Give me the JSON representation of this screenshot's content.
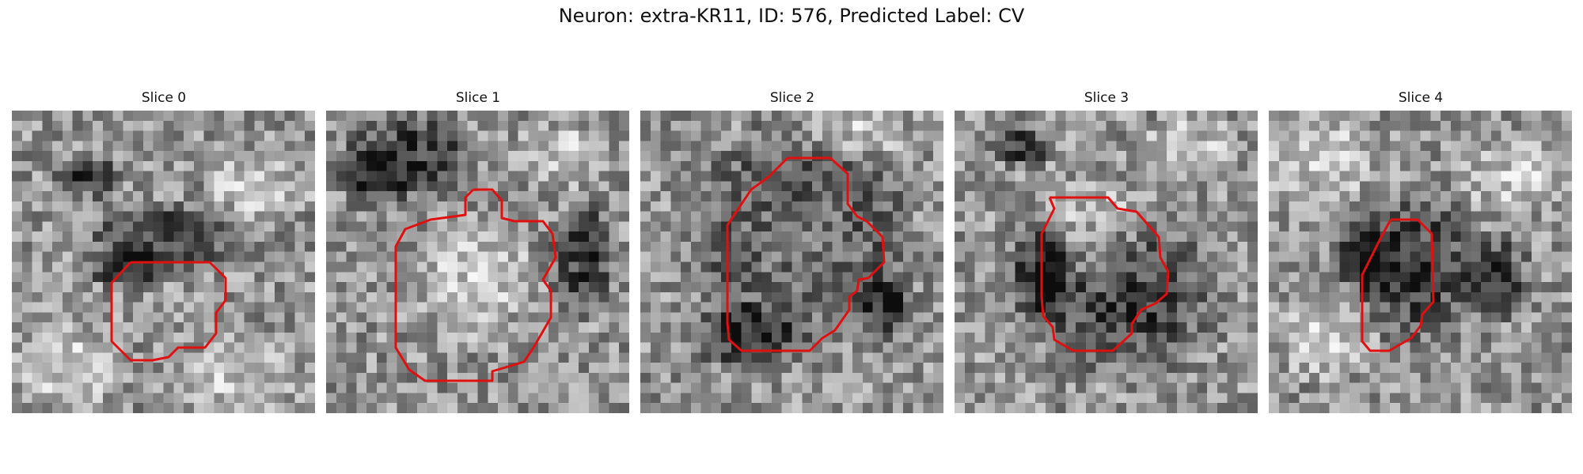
{
  "figure": {
    "title": "Neuron: extra-KR11, ID: 576, Predicted Label: CV",
    "contour_color": "#e01010"
  },
  "slices": [
    {
      "label": "Slice 0"
    },
    {
      "label": "Slice 1"
    },
    {
      "label": "Slice 2"
    },
    {
      "label": "Slice 3"
    },
    {
      "label": "Slice 4"
    }
  ]
}
